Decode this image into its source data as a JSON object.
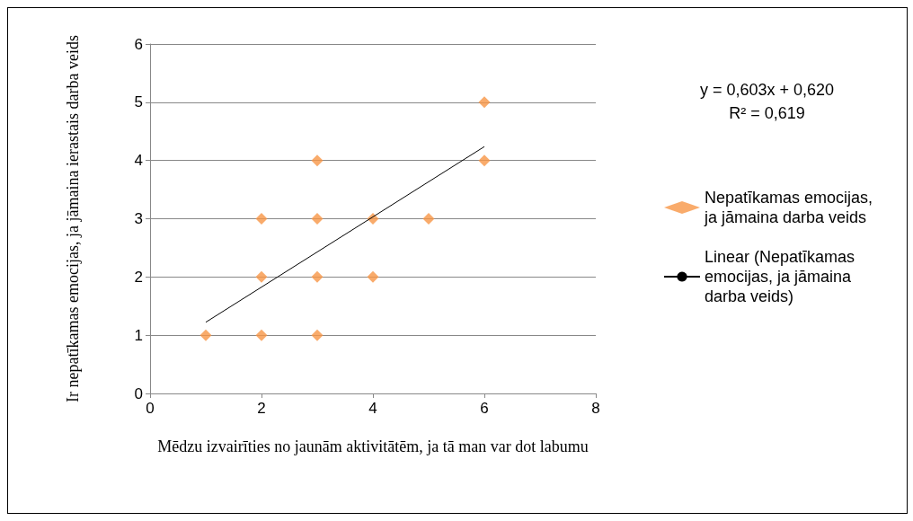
{
  "chart_data": {
    "type": "scatter",
    "xlabel": "Mēdzu izvairīties no jaunām aktivitātēm, ja tā man var dot labumu",
    "ylabel": "Ir nepatīkamas emocijas, ja jāmaina ierastais darba veids",
    "annotations": [
      "y = 0,603x + 0,620\nR² = 0,619"
    ],
    "series": [
      {
        "name": "Nepatīkamas emocijas, ja jāmaina darba veids",
        "color": "#f79646",
        "marker": "diamond",
        "x": [
          1,
          2,
          3,
          2,
          3,
          4,
          2,
          3,
          4,
          5,
          3,
          6,
          6
        ],
        "values": [
          1,
          1,
          1,
          2,
          2,
          2,
          3,
          3,
          3,
          3,
          4,
          4,
          5
        ]
      },
      {
        "name": "Linear (Nepatīkamas emocijas, ja jāmaina darba veids)",
        "type": "line",
        "color": "#000000",
        "marker": "none",
        "x": [
          1,
          6
        ],
        "values": [
          1.223,
          4.238
        ]
      }
    ],
    "xlim": [
      0,
      8
    ],
    "xticks": [
      0,
      2,
      4,
      6,
      8
    ],
    "ylim": [
      0,
      6
    ],
    "yticks": [
      0,
      1,
      2,
      3,
      4,
      5,
      6
    ],
    "grid": "y",
    "legend": "right"
  }
}
